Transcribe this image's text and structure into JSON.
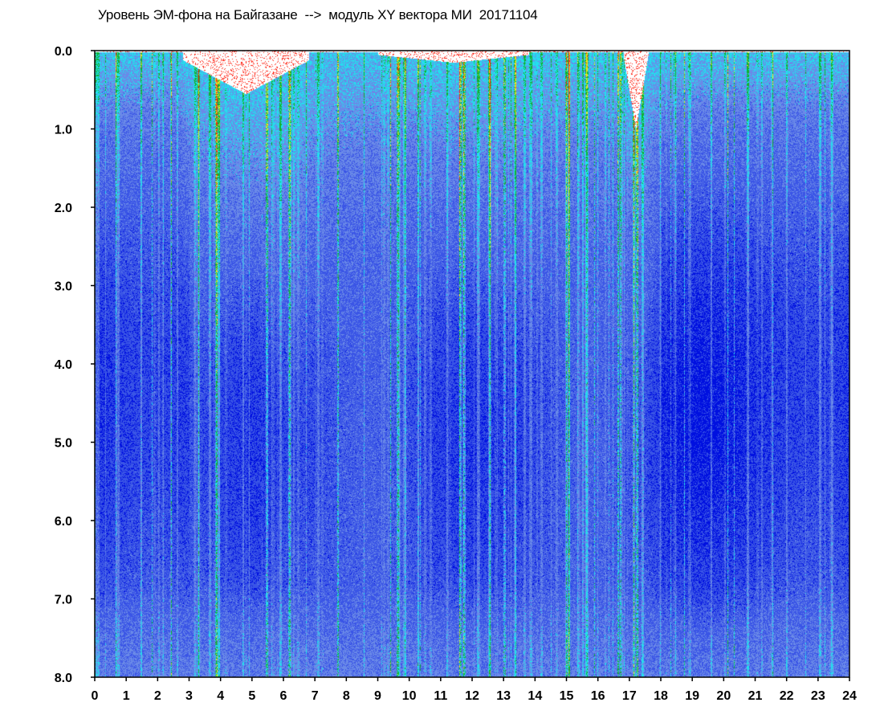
{
  "chart_data": {
    "type": "heatmap",
    "title": "Уровень ЭМ-фона на Байгазане  -->  модуль XY вектора МИ  20171104",
    "xlabel": "",
    "ylabel": "",
    "x_ticks": [
      "0",
      "1",
      "2",
      "3",
      "4",
      "5",
      "6",
      "7",
      "8",
      "9",
      "10",
      "11",
      "12",
      "13",
      "14",
      "15",
      "16",
      "17",
      "18",
      "19",
      "20",
      "21",
      "22",
      "23",
      "24"
    ],
    "y_ticks": [
      "0.0",
      "1.0",
      "2.0",
      "3.0",
      "4.0",
      "5.0",
      "6.0",
      "7.0",
      "8.0"
    ],
    "xlim": [
      0,
      24
    ],
    "ylim": [
      8.0,
      0.0
    ],
    "grid": false,
    "colormap": [
      "#0010e0",
      "#3a55e6",
      "#6a8ae8",
      "#22e0ee",
      "#10b030",
      "#f0e020",
      "#ff2010"
    ],
    "background": "#ffffff"
  }
}
